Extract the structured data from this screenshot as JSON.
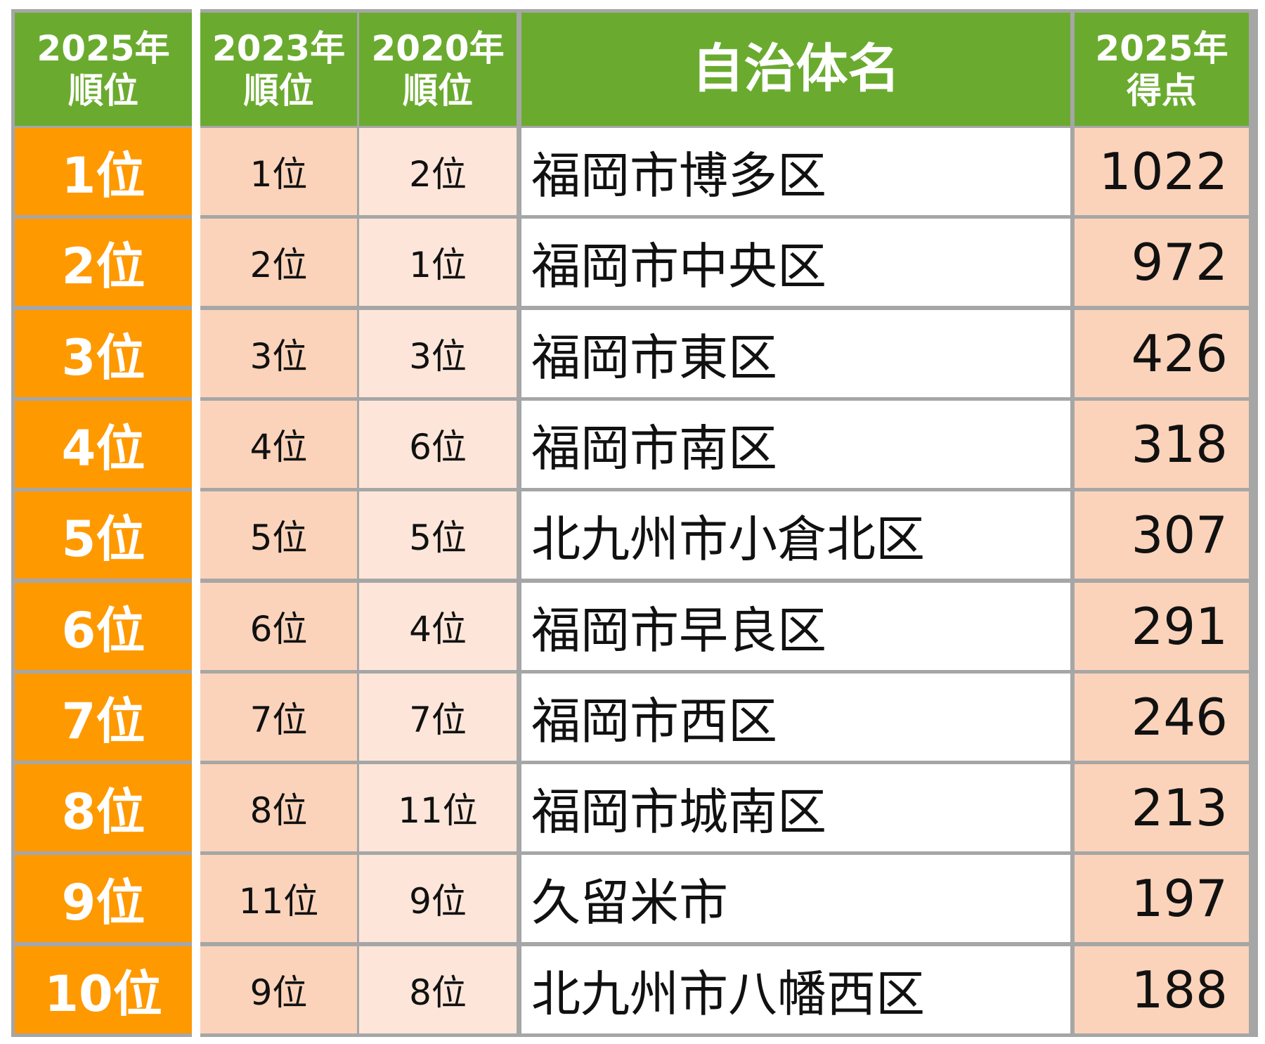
{
  "colors": {
    "header": "#6aab2f",
    "rank": "#ff9900",
    "score": "#fbd3ba",
    "prev2023": "#fbd3ba",
    "prev2020": "#fde6d9",
    "border": "#a6a6a6"
  },
  "headers": {
    "rank2025": [
      "2025年",
      "順位"
    ],
    "rank2023": [
      "2023年",
      "順位"
    ],
    "rank2020": [
      "2020年",
      "順位"
    ],
    "name": "自治体名",
    "score2025": [
      "2025年",
      "得点"
    ]
  },
  "rows": [
    {
      "rank2025": "1位",
      "rank2023": "1位",
      "rank2020": "2位",
      "name": "福岡市博多区",
      "score": "1022"
    },
    {
      "rank2025": "2位",
      "rank2023": "2位",
      "rank2020": "1位",
      "name": "福岡市中央区",
      "score": "972"
    },
    {
      "rank2025": "3位",
      "rank2023": "3位",
      "rank2020": "3位",
      "name": "福岡市東区",
      "score": "426"
    },
    {
      "rank2025": "4位",
      "rank2023": "4位",
      "rank2020": "6位",
      "name": "福岡市南区",
      "score": "318"
    },
    {
      "rank2025": "5位",
      "rank2023": "5位",
      "rank2020": "5位",
      "name": "北九州市小倉北区",
      "score": "307"
    },
    {
      "rank2025": "6位",
      "rank2023": "6位",
      "rank2020": "4位",
      "name": "福岡市早良区",
      "score": "291"
    },
    {
      "rank2025": "7位",
      "rank2023": "7位",
      "rank2020": "7位",
      "name": "福岡市西区",
      "score": "246"
    },
    {
      "rank2025": "8位",
      "rank2023": "8位",
      "rank2020": "11位",
      "name": "福岡市城南区",
      "score": "213"
    },
    {
      "rank2025": "9位",
      "rank2023": "11位",
      "rank2020": "9位",
      "name": "久留米市",
      "score": "197"
    },
    {
      "rank2025": "10位",
      "rank2023": "9位",
      "rank2020": "8位",
      "name": "北九州市八幡西区",
      "score": "188"
    }
  ]
}
